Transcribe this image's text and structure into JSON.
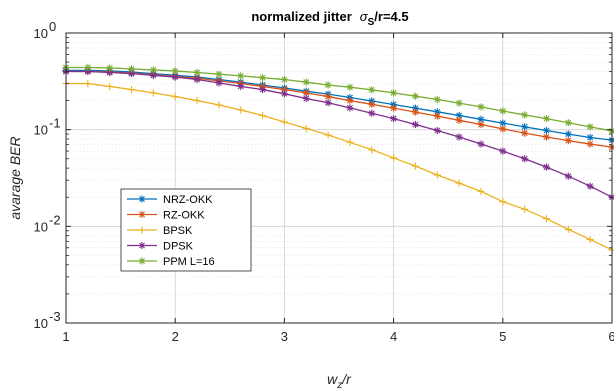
{
  "chart_data": {
    "type": "line",
    "title_prefix": "normalized jitter",
    "title_sigma": "σ",
    "title_sub": "S",
    "title_suffix": "/r=4.5",
    "xlabel_main": "w",
    "xlabel_sub": "z",
    "xlabel_suffix": "/r",
    "ylabel": "avarage BER",
    "xlim": [
      1,
      6
    ],
    "ylim": [
      0.001,
      1
    ],
    "yscale": "log",
    "grid": true,
    "legend_position": "left-middle",
    "x_ticks": [
      "1",
      "2",
      "3",
      "4",
      "5",
      "6"
    ],
    "y_ticks": [
      {
        "base": "10",
        "exp": "0"
      },
      {
        "base": "10",
        "exp": "-1"
      },
      {
        "base": "10",
        "exp": "-2"
      },
      {
        "base": "10",
        "exp": "-3"
      }
    ],
    "x": [
      1,
      1.2,
      1.4,
      1.6,
      1.8,
      2,
      2.2,
      2.4,
      2.6,
      2.8,
      3,
      3.2,
      3.4,
      3.6,
      3.8,
      4,
      4.2,
      4.4,
      4.6,
      4.8,
      5,
      5.2,
      5.4,
      5.6,
      5.8,
      6
    ],
    "series": [
      {
        "name": "NRZ-OKK",
        "color": "#0072BD",
        "marker": "asterisk",
        "values": [
          0.41,
          0.41,
          0.405,
          0.395,
          0.38,
          0.365,
          0.35,
          0.33,
          0.31,
          0.29,
          0.27,
          0.25,
          0.233,
          0.215,
          0.198,
          0.182,
          0.167,
          0.153,
          0.14,
          0.128,
          0.117,
          0.107,
          0.098,
          0.09,
          0.083,
          0.078
        ]
      },
      {
        "name": "RZ-OKK",
        "color": "#D95319",
        "marker": "asterisk",
        "values": [
          0.4,
          0.4,
          0.395,
          0.385,
          0.37,
          0.355,
          0.34,
          0.32,
          0.3,
          0.28,
          0.26,
          0.24,
          0.22,
          0.2,
          0.183,
          0.167,
          0.152,
          0.138,
          0.125,
          0.113,
          0.102,
          0.092,
          0.084,
          0.077,
          0.071,
          0.066
        ]
      },
      {
        "name": "BPSK",
        "color": "#EDB120",
        "marker": "plus",
        "values": [
          0.3,
          0.3,
          0.28,
          0.26,
          0.24,
          0.22,
          0.2,
          0.18,
          0.16,
          0.14,
          0.12,
          0.103,
          0.088,
          0.074,
          0.062,
          0.051,
          0.042,
          0.034,
          0.028,
          0.023,
          0.018,
          0.015,
          0.012,
          0.0093,
          0.0073,
          0.0057
        ]
      },
      {
        "name": "DPSK",
        "color": "#7E2F8E",
        "marker": "asterisk",
        "values": [
          0.4,
          0.4,
          0.39,
          0.38,
          0.365,
          0.35,
          0.33,
          0.305,
          0.28,
          0.26,
          0.235,
          0.21,
          0.19,
          0.168,
          0.148,
          0.13,
          0.113,
          0.098,
          0.084,
          0.071,
          0.06,
          0.05,
          0.041,
          0.033,
          0.026,
          0.02
        ]
      },
      {
        "name": "PPM  L=16",
        "color": "#77AC30",
        "marker": "asterisk",
        "values": [
          0.44,
          0.44,
          0.435,
          0.425,
          0.415,
          0.405,
          0.39,
          0.375,
          0.36,
          0.345,
          0.33,
          0.31,
          0.29,
          0.275,
          0.258,
          0.24,
          0.222,
          0.205,
          0.188,
          0.172,
          0.156,
          0.142,
          0.13,
          0.118,
          0.107,
          0.097
        ]
      }
    ]
  }
}
